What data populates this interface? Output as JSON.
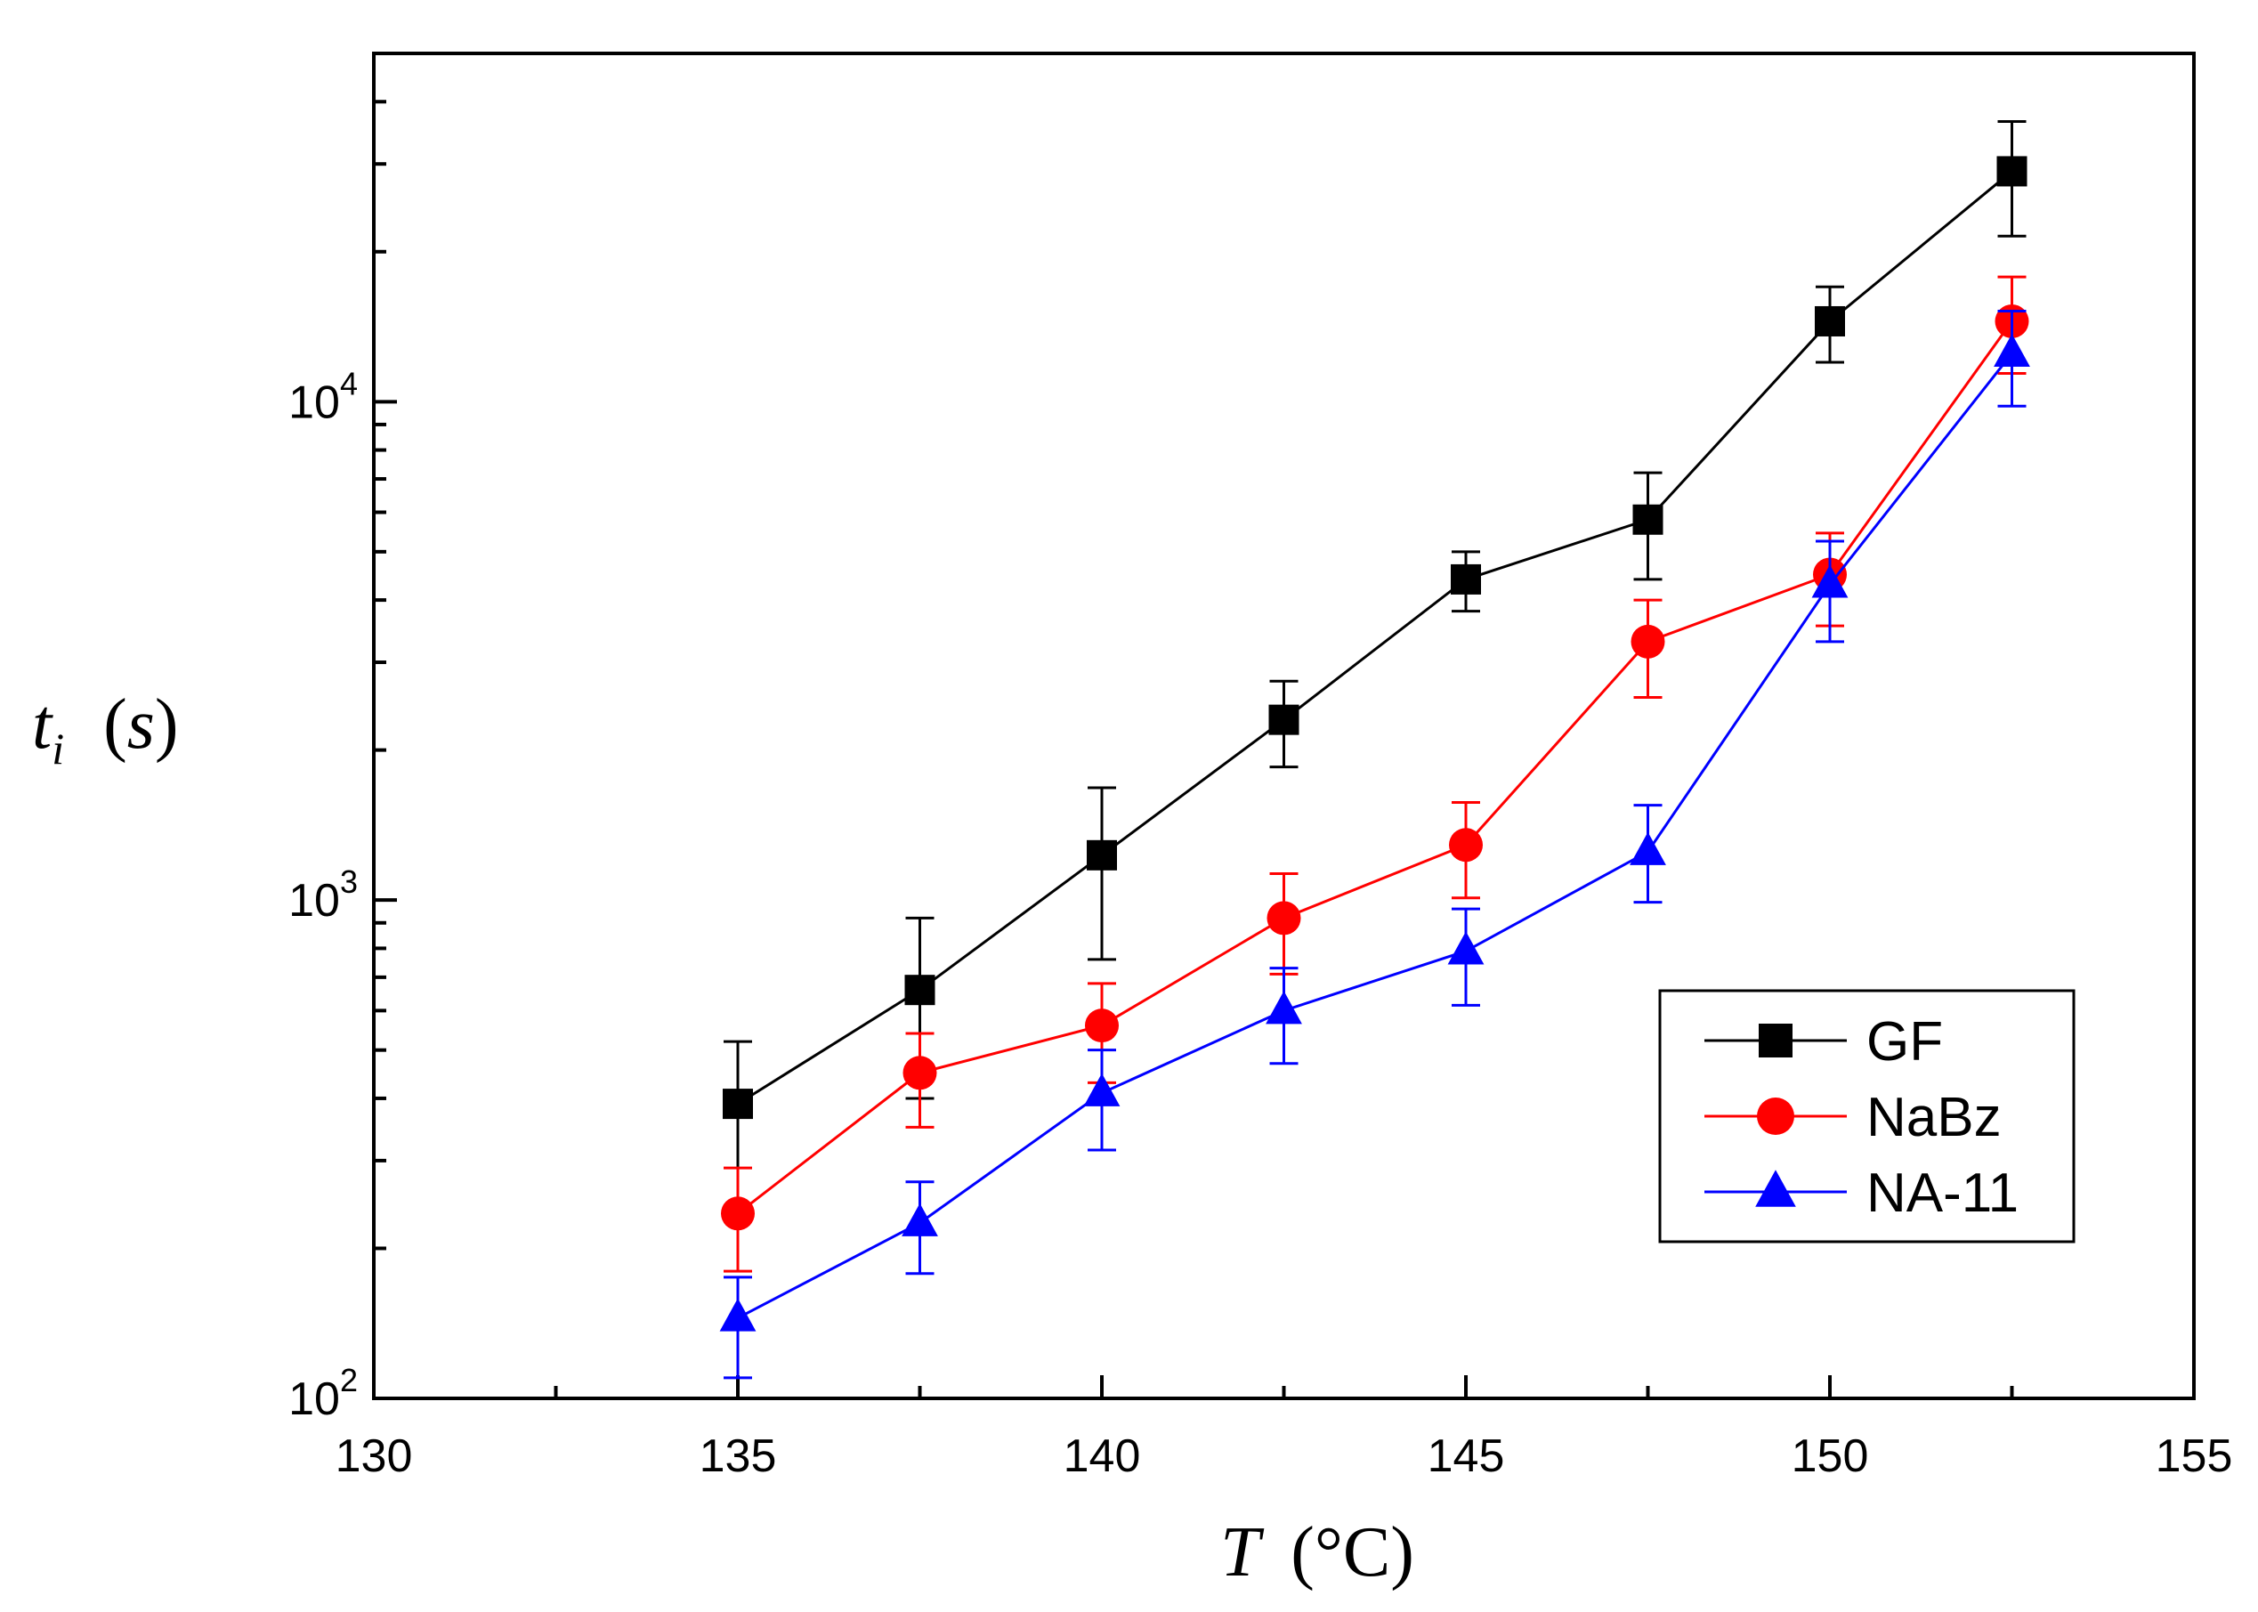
{
  "chart_data": {
    "type": "line",
    "title": "",
    "xlabel": "T (°C)",
    "ylabel": "t_i (s)",
    "xlabel_parts": {
      "var": "T",
      "unit": "°C"
    },
    "ylabel_parts": {
      "var": "t",
      "sub": "i",
      "unit": "s"
    },
    "xlim": [
      130,
      155
    ],
    "ylim": [
      100,
      50000
    ],
    "yscale": "log",
    "grid": false,
    "legend_position": "lower-right",
    "x_ticks": [
      130,
      135,
      140,
      145,
      150,
      155
    ],
    "x_tick_labels": [
      "130",
      "135",
      "140",
      "145",
      "150",
      "155"
    ],
    "y_ticks": [
      100,
      1000,
      10000
    ],
    "y_tick_labels": [
      {
        "base": "10",
        "exp": "2"
      },
      {
        "base": "10",
        "exp": "3"
      },
      {
        "base": "10",
        "exp": "4"
      }
    ],
    "x": [
      135,
      137.5,
      140,
      142.5,
      145,
      147.5,
      150,
      152.5
    ],
    "series": [
      {
        "name": "GF",
        "color": "#000000",
        "marker": "square",
        "values": [
          390,
          660,
          1230,
          2300,
          4400,
          5800,
          14500,
          29000
        ],
        "err_low": [
          240,
          400,
          760,
          1850,
          3800,
          4400,
          12000,
          21500
        ],
        "err_high": [
          520,
          920,
          1680,
          2750,
          5000,
          7200,
          17000,
          36500
        ]
      },
      {
        "name": "NaBz",
        "color": "#ff0000",
        "marker": "circle",
        "values": [
          235,
          450,
          560,
          920,
          1290,
          3300,
          4500,
          14500
        ],
        "err_low": [
          180,
          350,
          430,
          710,
          1010,
          2550,
          3550,
          11400
        ],
        "err_high": [
          290,
          540,
          680,
          1130,
          1570,
          4000,
          5450,
          17800
        ]
      },
      {
        "name": "NA-11",
        "color": "#0000ff",
        "marker": "triangle",
        "values": [
          145,
          225,
          410,
          600,
          790,
          1250,
          4300,
          12500
        ],
        "err_low": [
          110,
          178,
          315,
          470,
          615,
          990,
          3300,
          9800
        ],
        "err_high": [
          175,
          272,
          500,
          730,
          960,
          1550,
          5250,
          15200
        ]
      }
    ]
  },
  "colors": {
    "axes": "#000000",
    "background": "#ffffff"
  }
}
